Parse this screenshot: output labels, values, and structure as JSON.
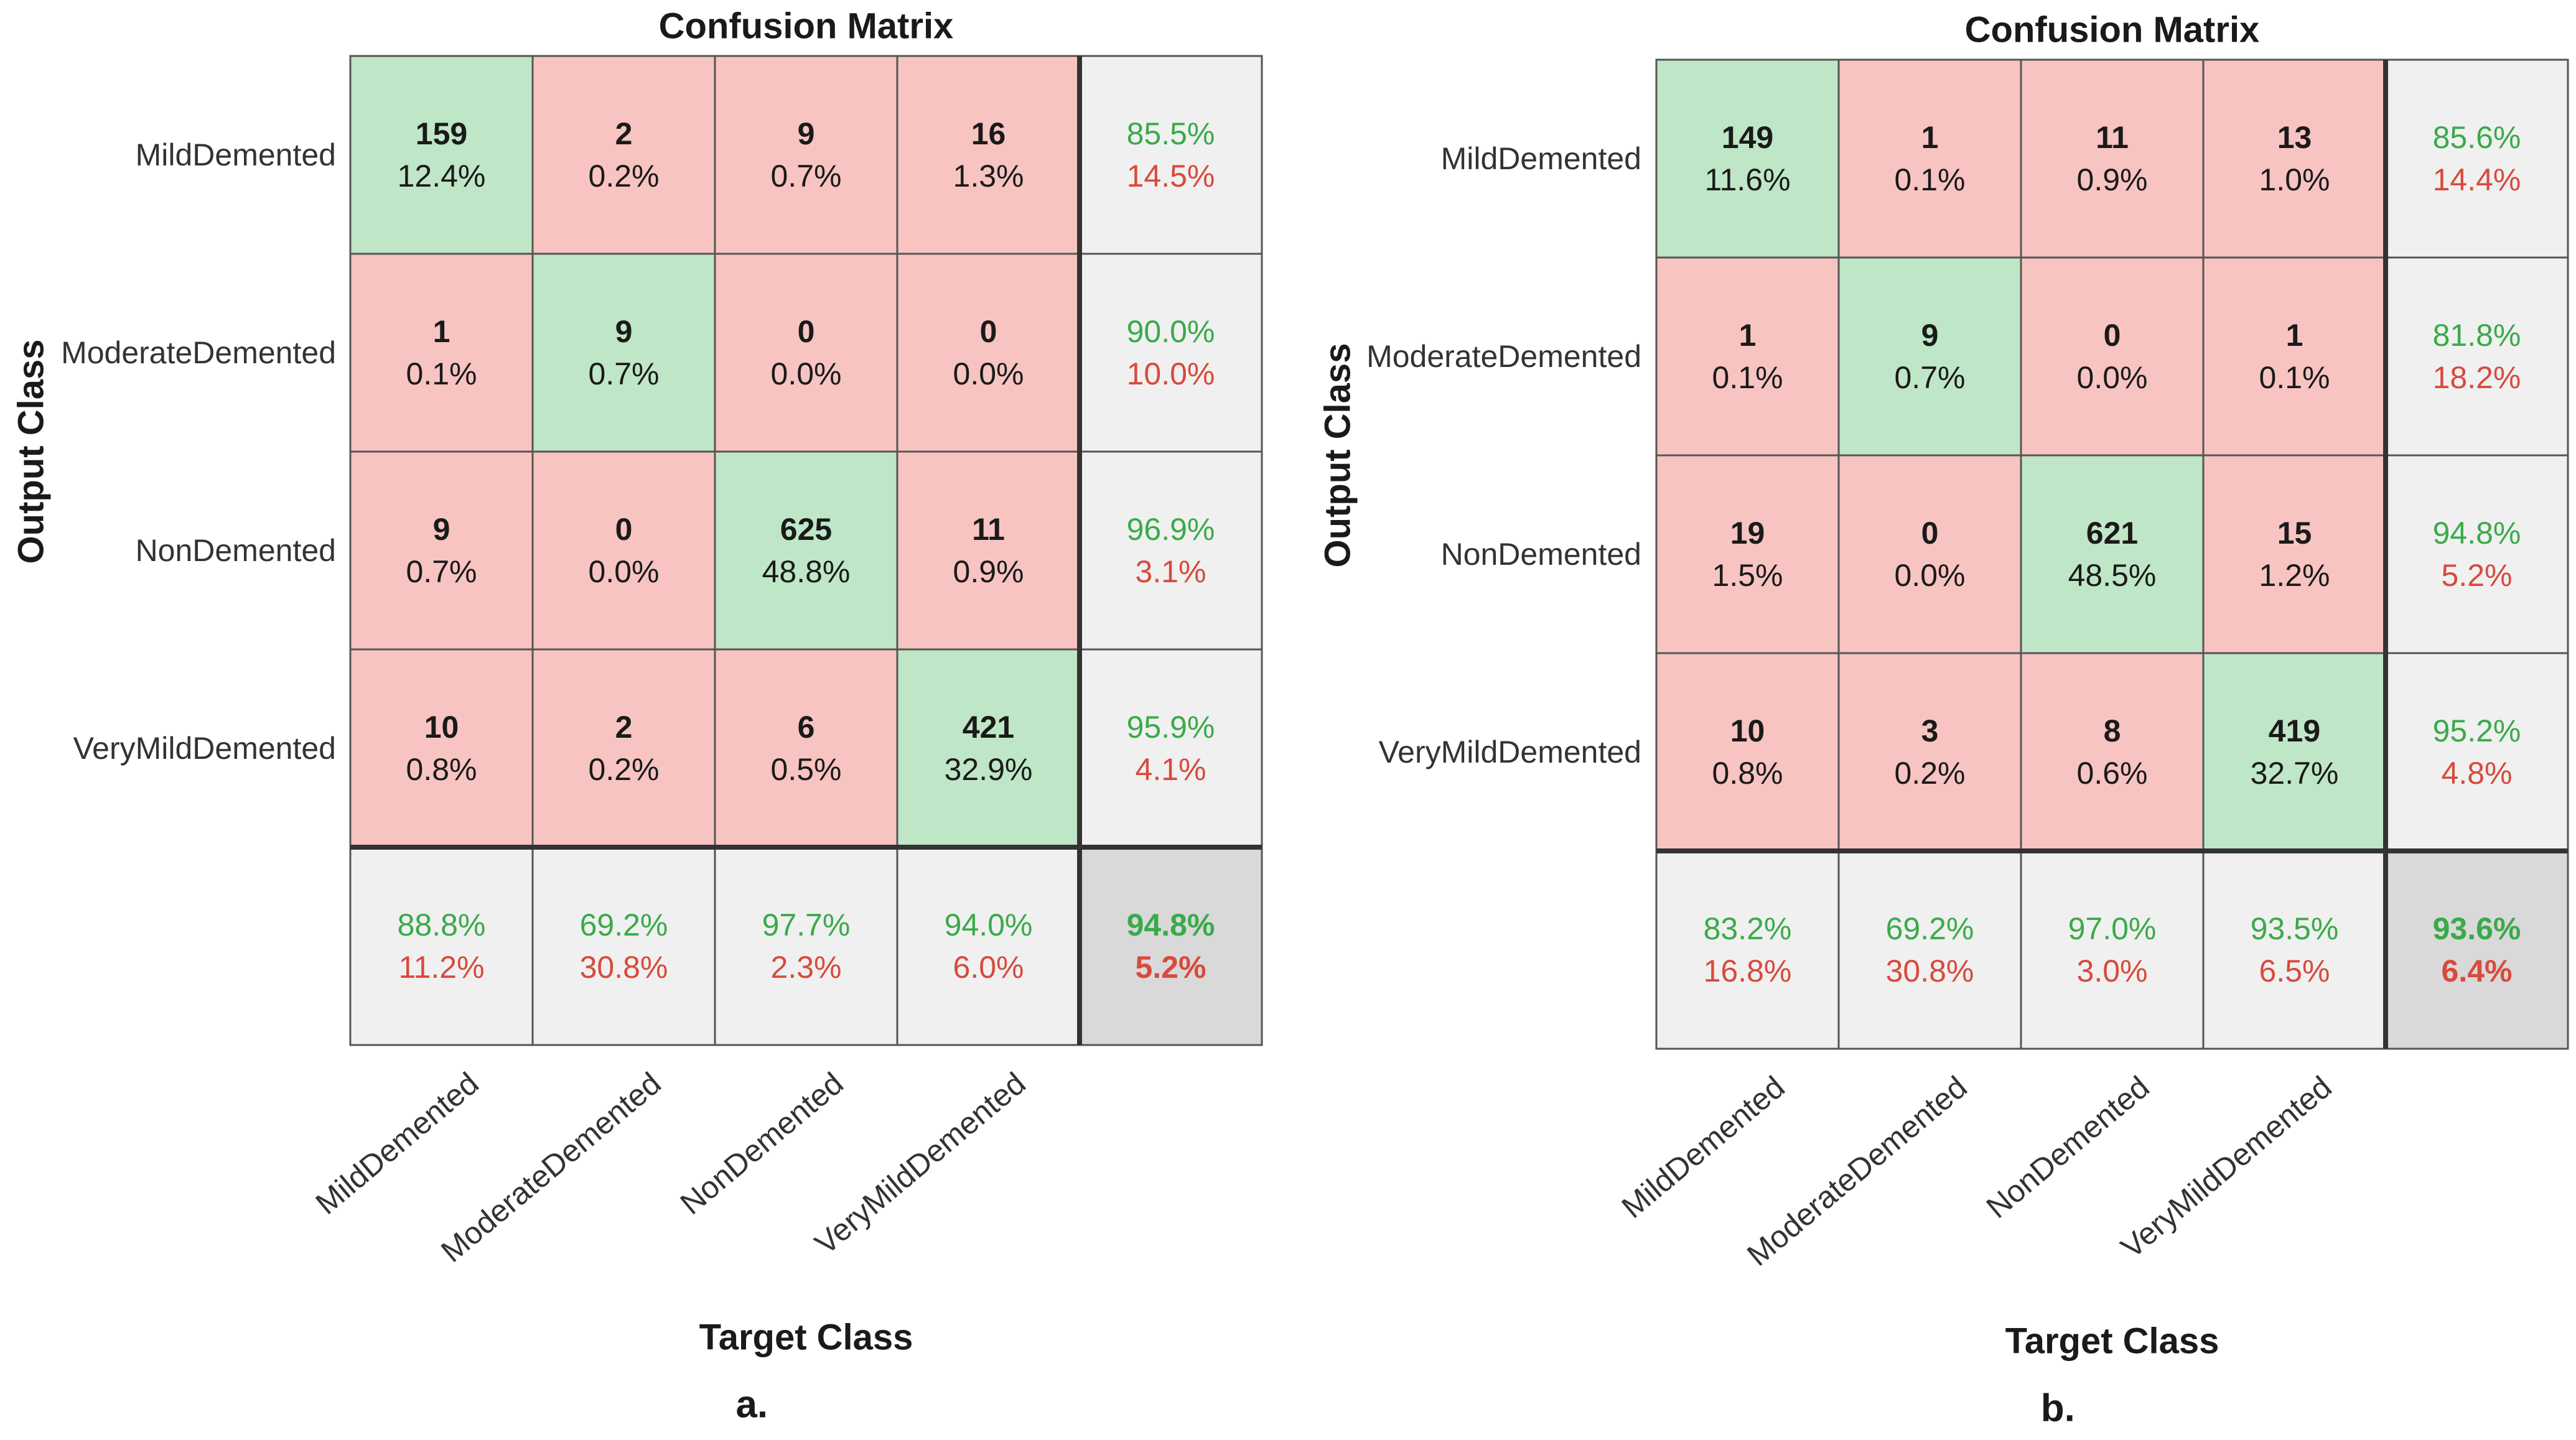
{
  "chart_data": [
    {
      "type": "heatmap",
      "title": "Confusion Matrix",
      "xlabel": "Target Class",
      "ylabel": "Output Class",
      "panel_label": "a.",
      "classes": [
        "MildDemented",
        "ModerateDemented",
        "NonDemented",
        "VeryMildDemented"
      ],
      "counts": [
        [
          159,
          2,
          9,
          16
        ],
        [
          1,
          9,
          0,
          0
        ],
        [
          9,
          0,
          625,
          11
        ],
        [
          10,
          2,
          6,
          421
        ]
      ],
      "percents": [
        [
          "12.4%",
          "0.2%",
          "0.7%",
          "1.3%"
        ],
        [
          "0.1%",
          "0.7%",
          "0.0%",
          "0.0%"
        ],
        [
          "0.7%",
          "0.0%",
          "48.8%",
          "0.9%"
        ],
        [
          "0.8%",
          "0.2%",
          "0.5%",
          "32.9%"
        ]
      ],
      "row_summary": [
        [
          "85.5%",
          "14.5%"
        ],
        [
          "90.0%",
          "10.0%"
        ],
        [
          "96.9%",
          "3.1%"
        ],
        [
          "95.9%",
          "4.1%"
        ]
      ],
      "col_summary": [
        [
          "88.8%",
          "11.2%"
        ],
        [
          "69.2%",
          "30.8%"
        ],
        [
          "97.7%",
          "2.3%"
        ],
        [
          "94.0%",
          "6.0%"
        ]
      ],
      "overall": [
        "94.8%",
        "5.2%"
      ]
    },
    {
      "type": "heatmap",
      "title": "Confusion Matrix",
      "xlabel": "Target Class",
      "ylabel": "Output Class",
      "panel_label": "b.",
      "classes": [
        "MildDemented",
        "ModerateDemented",
        "NonDemented",
        "VeryMildDemented"
      ],
      "counts": [
        [
          149,
          1,
          11,
          13
        ],
        [
          1,
          9,
          0,
          1
        ],
        [
          19,
          0,
          621,
          15
        ],
        [
          10,
          3,
          8,
          419
        ]
      ],
      "percents": [
        [
          "11.6%",
          "0.1%",
          "0.9%",
          "1.0%"
        ],
        [
          "0.1%",
          "0.7%",
          "0.0%",
          "0.1%"
        ],
        [
          "1.5%",
          "0.0%",
          "48.5%",
          "1.2%"
        ],
        [
          "0.8%",
          "0.2%",
          "0.6%",
          "32.7%"
        ]
      ],
      "row_summary": [
        [
          "85.6%",
          "14.4%"
        ],
        [
          "81.8%",
          "18.2%"
        ],
        [
          "94.8%",
          "5.2%"
        ],
        [
          "95.2%",
          "4.8%"
        ]
      ],
      "col_summary": [
        [
          "83.2%",
          "16.8%"
        ],
        [
          "69.2%",
          "30.8%"
        ],
        [
          "97.0%",
          "3.0%"
        ],
        [
          "93.5%",
          "6.5%"
        ]
      ],
      "overall": [
        "93.6%",
        "6.4%"
      ]
    }
  ],
  "colors": {
    "correct_cell": "#bfe6c6",
    "incorrect_cell": "#f7c4c2",
    "summary_cell": "#f0f0f0",
    "overall_cell": "#d9d9d9",
    "green_text": "#3aaa4a",
    "red_text": "#d84a3c",
    "grid_line": "#555555",
    "text": "#1a1a1a"
  }
}
